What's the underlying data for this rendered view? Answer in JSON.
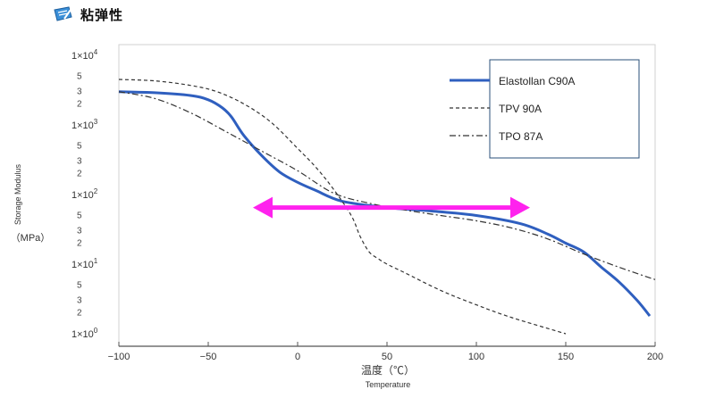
{
  "header": {
    "icon": "pencil-note-icon",
    "title": "粘弹性"
  },
  "chart_data": {
    "type": "line",
    "title": "",
    "xlabel": "温度（℃）",
    "xlabel_sub": "Temperature",
    "ylabel": "Storage Modulus",
    "ylabel_unit": "（MPa）",
    "xlim": [
      -100,
      200
    ],
    "ylim": [
      1,
      10000
    ],
    "yscale": "log",
    "grid": false,
    "xticks": [
      -100,
      -50,
      0,
      50,
      100,
      150,
      200
    ],
    "xtick_labels": [
      "−100",
      "−50",
      "0",
      "50",
      "100",
      "150",
      "200"
    ],
    "ydecades": [
      {
        "value": 1,
        "base": "1×10",
        "exp": "0"
      },
      {
        "value": 10,
        "base": "1×10",
        "exp": "1"
      },
      {
        "value": 100,
        "base": "1×10",
        "exp": "2"
      },
      {
        "value": 1000,
        "base": "1×10",
        "exp": "3"
      },
      {
        "value": 10000,
        "base": "1×10",
        "exp": "4"
      }
    ],
    "yminor_labels": [
      "5",
      "3",
      "2"
    ],
    "legend_position": "top-right",
    "series": [
      {
        "name": "Elastollan C90A",
        "color": "#2f5fbf",
        "style": "solid",
        "x": [
          -100,
          -80,
          -60,
          -50,
          -42,
          -37,
          -30,
          -20,
          -10,
          0,
          10,
          25,
          50,
          75,
          100,
          125,
          140,
          150,
          160,
          170,
          180,
          190,
          197
        ],
        "y": [
          3000,
          2900,
          2650,
          2300,
          1750,
          1300,
          700,
          360,
          210,
          150,
          115,
          80,
          65,
          58,
          50,
          38,
          27,
          20,
          15,
          9,
          5.5,
          3,
          1.8
        ]
      },
      {
        "name": "TPV 90A",
        "color": "#333333",
        "style": "dashed",
        "x": [
          -100,
          -80,
          -60,
          -45,
          -30,
          -15,
          0,
          10,
          20,
          30,
          35,
          40,
          45,
          50,
          60,
          80,
          100,
          120,
          150
        ],
        "y": [
          4500,
          4300,
          3700,
          3000,
          2000,
          1100,
          460,
          250,
          120,
          50,
          25,
          15,
          12,
          10,
          7.5,
          4.2,
          2.6,
          1.7,
          1.0
        ]
      },
      {
        "name": "TPO 87A",
        "color": "#333333",
        "style": "dashdot",
        "x": [
          -100,
          -80,
          -60,
          -40,
          -20,
          0,
          20,
          40,
          60,
          80,
          100,
          120,
          140,
          160,
          180,
          200
        ],
        "y": [
          3000,
          2400,
          1500,
          800,
          420,
          220,
          105,
          75,
          60,
          50,
          42,
          33,
          23,
          14,
          9,
          6
        ]
      }
    ],
    "annotation": {
      "type": "double-arrow",
      "color": "#ff22ee",
      "x": [
        -25,
        130
      ],
      "y": 65
    }
  }
}
